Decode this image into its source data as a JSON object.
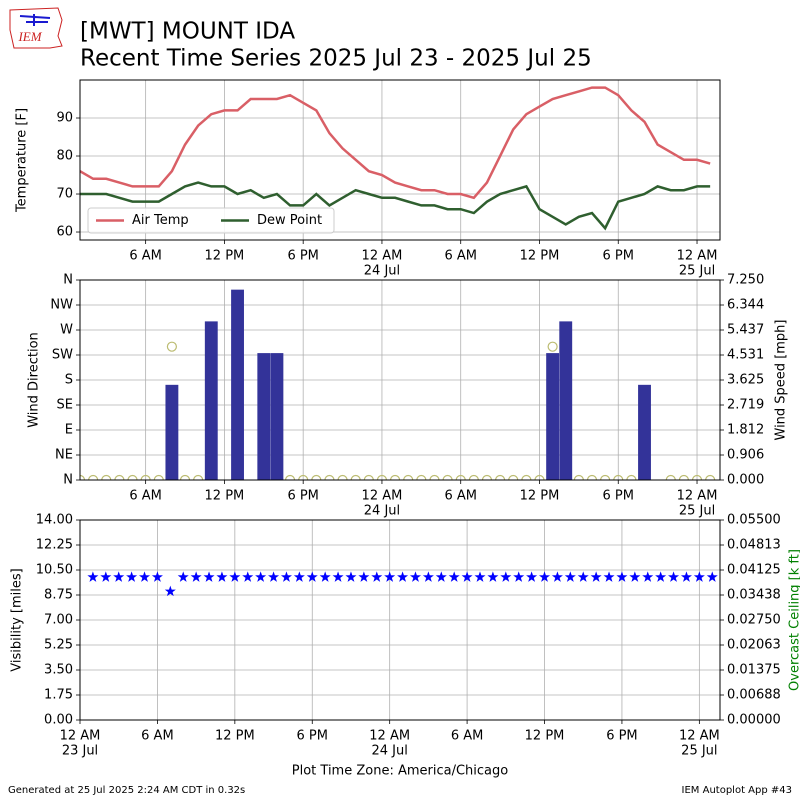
{
  "header": {
    "logo": "IEM",
    "title": "[MWT] MOUNT IDA",
    "subtitle": "Recent Time Series 2025 Jul 23 - 2025 Jul 25"
  },
  "footer": {
    "left": "Generated at 25 Jul 2025 2:24 AM CDT in 0.32s",
    "right": "IEM Autoplot App #43"
  },
  "chart_data": [
    {
      "type": "line",
      "ylabel": "Temperature [F]",
      "legend": "lower left",
      "grid": true,
      "xlim": [
        1,
        49.75
      ],
      "ylim": [
        57.9,
        100
      ],
      "yticks": [
        60,
        70,
        80,
        90
      ],
      "xticks": [
        {
          "value": 6,
          "label": "6 AM"
        },
        {
          "value": 12,
          "label": "12 PM"
        },
        {
          "value": 18,
          "label": "6 PM"
        },
        {
          "value": 24,
          "label": "12 AM",
          "sublabel": "24 Jul"
        },
        {
          "value": 30,
          "label": "6 AM"
        },
        {
          "value": 36,
          "label": "12 PM"
        },
        {
          "value": 42,
          "label": "6 PM"
        },
        {
          "value": 48,
          "label": "12 AM",
          "sublabel": "25 Jul"
        }
      ],
      "x": [
        1,
        2,
        3,
        4,
        5,
        6,
        7,
        8,
        9,
        10,
        11,
        12,
        13,
        14,
        15,
        16,
        17,
        18,
        19,
        20,
        21,
        22,
        23,
        24,
        25,
        26,
        27,
        28,
        29,
        30,
        31,
        32,
        33,
        34,
        35,
        36,
        37,
        38,
        39,
        40,
        41,
        42,
        43,
        44,
        45,
        46,
        47,
        48,
        49
      ],
      "series": [
        {
          "name": "Air Temp",
          "color": "#d95f66",
          "values": [
            76,
            74,
            74,
            73,
            72,
            72,
            72,
            76,
            83,
            88,
            91,
            92,
            92,
            95,
            95,
            95,
            96,
            94,
            92,
            86,
            82,
            79,
            76,
            75,
            73,
            72,
            71,
            71,
            70,
            70,
            69,
            73,
            80,
            87,
            91,
            93,
            95,
            96,
            97,
            98,
            98,
            96,
            92,
            89,
            83,
            81,
            79,
            79,
            78
          ]
        },
        {
          "name": "Dew Point",
          "color": "#2f5f2f",
          "values": [
            70,
            70,
            70,
            69,
            68,
            68,
            68,
            70,
            72,
            73,
            72,
            72,
            70,
            71,
            69,
            70,
            67,
            67,
            70,
            67,
            69,
            71,
            70,
            69,
            69,
            68,
            67,
            67,
            66,
            66,
            65,
            68,
            70,
            71,
            72,
            66,
            64,
            62,
            64,
            65,
            61,
            68,
            69,
            70,
            72,
            71,
            71,
            72,
            72
          ]
        }
      ]
    },
    {
      "type": "bar",
      "ylabel": "Wind Direction",
      "y2label": "Wind Speed [mph]",
      "grid": true,
      "xlim": [
        1,
        49.75
      ],
      "ylim": [
        0,
        360
      ],
      "yticks": [
        {
          "value": 0,
          "label": "N"
        },
        {
          "value": 45,
          "label": "NE"
        },
        {
          "value": 90,
          "label": "E"
        },
        {
          "value": 135,
          "label": "SE"
        },
        {
          "value": 180,
          "label": "S"
        },
        {
          "value": 225,
          "label": "SW"
        },
        {
          "value": 270,
          "label": "W"
        },
        {
          "value": 315,
          "label": "NW"
        },
        {
          "value": 360,
          "label": "N"
        }
      ],
      "y2lim": [
        0,
        7.25
      ],
      "y2ticks": [
        {
          "value": 0,
          "label": "0.000"
        },
        {
          "value": 0.90625,
          "label": "0.906"
        },
        {
          "value": 1.8125,
          "label": "1.812"
        },
        {
          "value": 2.71875,
          "label": "2.719"
        },
        3.625,
        {
          "value": 4.53125,
          "label": "4.531"
        },
        {
          "value": 5.4375,
          "label": "5.437"
        },
        {
          "value": 6.34375,
          "label": "6.344"
        },
        {
          "value": 7.25,
          "label": "7.250"
        }
      ],
      "xticks": [
        {
          "value": 6,
          "label": "6 AM"
        },
        {
          "value": 12,
          "label": "12 PM"
        },
        {
          "value": 18,
          "label": "6 PM"
        },
        {
          "value": 24,
          "label": "12 AM",
          "sublabel": "24 Jul"
        },
        {
          "value": 30,
          "label": "6 AM"
        },
        {
          "value": 36,
          "label": "12 PM"
        },
        {
          "value": 42,
          "label": "6 PM"
        },
        {
          "value": 48,
          "label": "12 AM",
          "sublabel": "25 Jul"
        }
      ],
      "x": [
        1,
        2,
        3,
        4,
        5,
        6,
        7,
        8,
        9,
        10,
        11,
        12,
        13,
        14,
        15,
        16,
        17,
        18,
        19,
        20,
        21,
        22,
        23,
        24,
        25,
        26,
        27,
        28,
        29,
        30,
        31,
        32,
        33,
        34,
        35,
        36,
        37,
        38,
        39,
        40,
        41,
        42,
        43,
        44,
        45,
        46,
        47,
        48,
        49
      ],
      "series": [
        {
          "type": "bar",
          "axis": "y2",
          "color": "#333399",
          "values": [
            0,
            0,
            0,
            0,
            0,
            0,
            0,
            3.45,
            0,
            0,
            5.75,
            0,
            6.9,
            0,
            4.6,
            4.6,
            0,
            0,
            0,
            0,
            0,
            0,
            0,
            0,
            0,
            0,
            0,
            0,
            0,
            0,
            0,
            0,
            0,
            0,
            0,
            0,
            4.6,
            5.75,
            0,
            0,
            0,
            0,
            0,
            3.45,
            0,
            0,
            0,
            0,
            0
          ]
        },
        {
          "type": "scatter",
          "marker": "circle",
          "color": "#bcbc72",
          "values": [
            0,
            0,
            0,
            0,
            0,
            0,
            0,
            240,
            0,
            0,
            null,
            null,
            null,
            null,
            null,
            null,
            0,
            0,
            0,
            0,
            0,
            0,
            0,
            0,
            0,
            0,
            0,
            0,
            0,
            0,
            0,
            0,
            0,
            0,
            0,
            0,
            240,
            null,
            0,
            0,
            0,
            0,
            0,
            null,
            null,
            0,
            0,
            0,
            0
          ]
        }
      ]
    },
    {
      "type": "scatter",
      "ylabel": "Visibility [miles]",
      "y2label": "Overcast Ceiling [k ft]",
      "y2label_color": "#008000",
      "xlabel": "Plot Time Zone: America/Chicago",
      "grid": true,
      "xlim": [
        0,
        49.6
      ],
      "ylim": [
        0,
        14
      ],
      "yticks": [
        {
          "value": 0,
          "label": "0.00"
        },
        1.75,
        {
          "value": 3.5,
          "label": "3.50"
        },
        5.25,
        {
          "value": 7,
          "label": "7.00"
        },
        8.75,
        {
          "value": 10.5,
          "label": "10.50"
        },
        12.25,
        {
          "value": 14,
          "label": "14.00"
        }
      ],
      "y2lim": [
        0,
        0.055
      ],
      "y2ticks": [
        {
          "value": 0,
          "label": "0.00000"
        },
        {
          "value": 0.006875,
          "label": "0.00688"
        },
        {
          "value": 0.01375,
          "label": "0.01375"
        },
        {
          "value": 0.020625,
          "label": "0.02063"
        },
        {
          "value": 0.0275,
          "label": "0.02750"
        },
        {
          "value": 0.034375,
          "label": "0.03438"
        },
        {
          "value": 0.04125,
          "label": "0.04125"
        },
        {
          "value": 0.048125,
          "label": "0.04813"
        },
        {
          "value": 0.055,
          "label": "0.05500"
        }
      ],
      "xticks": [
        {
          "value": 0,
          "label": "12 AM",
          "sublabel": "23 Jul"
        },
        {
          "value": 6,
          "label": "6 AM"
        },
        {
          "value": 12,
          "label": "12 PM"
        },
        {
          "value": 18,
          "label": "6 PM"
        },
        {
          "value": 24,
          "label": "12 AM",
          "sublabel": "24 Jul"
        },
        {
          "value": 30,
          "label": "6 AM"
        },
        {
          "value": 36,
          "label": "12 PM"
        },
        {
          "value": 42,
          "label": "6 PM"
        },
        {
          "value": 48,
          "label": "12 AM",
          "sublabel": "25 Jul"
        }
      ],
      "x": [
        1,
        2,
        3,
        4,
        5,
        6,
        7,
        8,
        9,
        10,
        11,
        12,
        13,
        14,
        15,
        16,
        17,
        18,
        19,
        20,
        21,
        22,
        23,
        24,
        25,
        26,
        27,
        28,
        29,
        30,
        31,
        32,
        33,
        34,
        35,
        36,
        37,
        38,
        39,
        40,
        41,
        42,
        43,
        44,
        45,
        46,
        47,
        48,
        49
      ],
      "series": [
        {
          "type": "scatter",
          "marker": "star",
          "color": "#0000ff",
          "values": [
            10,
            10,
            10,
            10,
            10,
            10,
            9,
            10,
            10,
            10,
            10,
            10,
            10,
            10,
            10,
            10,
            10,
            10,
            10,
            10,
            10,
            10,
            10,
            10,
            10,
            10,
            10,
            10,
            10,
            10,
            10,
            10,
            10,
            10,
            10,
            10,
            10,
            10,
            10,
            10,
            10,
            10,
            10,
            10,
            10,
            10,
            10,
            10,
            10
          ]
        }
      ]
    }
  ]
}
